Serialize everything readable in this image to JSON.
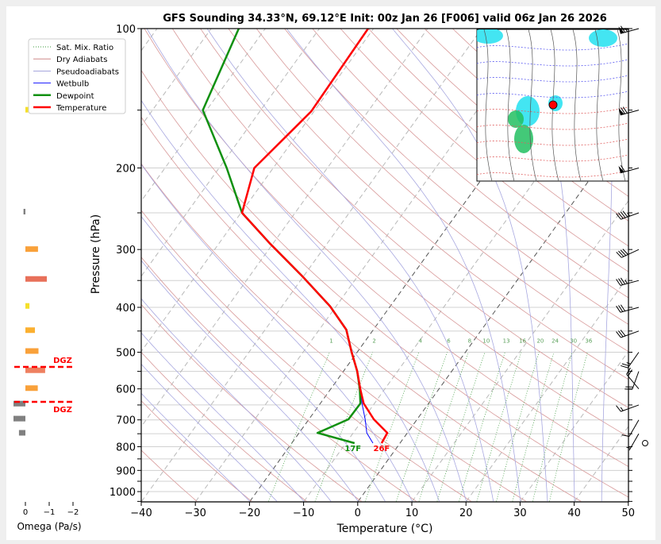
{
  "chart_data": {
    "type": "line",
    "title": "GFS Sounding 34.33°N, 69.12°E Init: 00z Jan 26 [F006] valid 06z Jan 26 2026",
    "xlabel": "Temperature (°C)",
    "ylabel": "Pressure (hPa)",
    "xlim": [
      -40,
      50
    ],
    "ylim": [
      1050,
      100
    ],
    "y_scale": "log",
    "skew": "skew-T",
    "x_ticks": [
      "−40",
      "−30",
      "−20",
      "−10",
      "0",
      "10",
      "20",
      "30",
      "40",
      "50"
    ],
    "x_tick_values": [
      -40,
      -30,
      -20,
      -10,
      0,
      10,
      20,
      30,
      40,
      50
    ],
    "y_ticks": [
      "100",
      "200",
      "300",
      "400",
      "500",
      "600",
      "700",
      "800",
      "900",
      "1000"
    ],
    "y_tick_values": [
      100,
      200,
      300,
      400,
      500,
      600,
      700,
      800,
      900,
      1000
    ],
    "grid": true,
    "legend": {
      "placement": "top-left",
      "entries": [
        {
          "label": "Sat. Mix. Ratio",
          "color": "#3a9a3a",
          "style": "dotted"
        },
        {
          "label": "Dry Adiabats",
          "color": "#c87878",
          "style": "solid"
        },
        {
          "label": "Pseudoadiabats",
          "color": "#9a9ad8",
          "style": "solid"
        },
        {
          "label": "Wetbulb",
          "color": "#0000ff",
          "style": "solid"
        },
        {
          "label": "Dewpoint",
          "color": "#109010",
          "style": "solid"
        },
        {
          "label": "Temperature",
          "color": "#ff0000",
          "style": "solid"
        }
      ]
    },
    "series": [
      {
        "name": "Temperature",
        "color": "#ff0000",
        "p": [
          786,
          747,
          698,
          645,
          601,
          549,
          499,
          447,
          398,
          344,
          292,
          250,
          200,
          151,
          100
        ],
        "t": [
          -3.4,
          -3.7,
          -8.0,
          -12.0,
          -14.5,
          -17.5,
          -21.1,
          -25.0,
          -31.1,
          -40.0,
          -50.4,
          -59.8,
          -63.5,
          -60.5,
          -61.0
        ]
      },
      {
        "name": "Dewpoint",
        "color": "#109010",
        "p": [
          786,
          747,
          698,
          645,
          601,
          549,
          499,
          447,
          398,
          344,
          292,
          250,
          200,
          150,
          100
        ],
        "t": [
          -8.4,
          -16.6,
          -12.7,
          -12.6,
          -14.6,
          -17.5,
          -21.1,
          -25.0,
          -31.1,
          -40.0,
          -50.4,
          -59.8,
          -68.6,
          -80.7,
          -84.9
        ]
      },
      {
        "name": "Wetbulb",
        "color": "#0000ff",
        "p": [
          786,
          747,
          698,
          645,
          601,
          549,
          499,
          447,
          398,
          344,
          292,
          250,
          200,
          151,
          100
        ],
        "t": [
          -5.0,
          -7.5,
          -9.6,
          -12.3,
          -14.5,
          -17.5,
          -21.1,
          -25.0,
          -31.1,
          -40.0,
          -50.4,
          -59.8,
          -63.6,
          -60.6,
          -61.1
        ]
      }
    ],
    "surface_labels": {
      "dewpoint": "17F",
      "temperature": "26F"
    },
    "mixing_ratio_labels": [
      "1",
      "2",
      "4",
      "6",
      "8",
      "10",
      "13",
      "16",
      "20",
      "24",
      "30",
      "36"
    ],
    "mixing_ratio_values": [
      1,
      2,
      4,
      6,
      8,
      10,
      13,
      16,
      20,
      24,
      30,
      36
    ],
    "dgz": {
      "label": "DGZ",
      "p_top": 538,
      "p_bottom": 640,
      "color": "#ff0000"
    },
    "omega": {
      "xlabel": "Omega (Pa/s)",
      "x_ticks": [
        "0",
        "−1",
        "−2"
      ],
      "x_tick_values": [
        0,
        -1,
        -2
      ],
      "bars": [
        {
          "p": 150,
          "value": -0.12,
          "color": "#f5e02a"
        },
        {
          "p": 249,
          "value": 0.08,
          "color": "#808080"
        },
        {
          "p": 300,
          "value": -0.53,
          "color": "#f9a13a"
        },
        {
          "p": 348,
          "value": -0.9,
          "color": "#e8705a"
        },
        {
          "p": 398,
          "value": -0.17,
          "color": "#f5e02a"
        },
        {
          "p": 449,
          "value": -0.4,
          "color": "#fbb030"
        },
        {
          "p": 498,
          "value": -0.55,
          "color": "#f9a13a"
        },
        {
          "p": 548,
          "value": -0.83,
          "color": "#ee8060"
        },
        {
          "p": 599,
          "value": -0.52,
          "color": "#f9a13a"
        },
        {
          "p": 647,
          "value": 0.5,
          "color": "#808080"
        },
        {
          "p": 697,
          "value": 0.5,
          "color": "#808080"
        },
        {
          "p": 748,
          "value": 0.27,
          "color": "#808080"
        }
      ]
    },
    "winds": [
      {
        "p": 100,
        "dir": 255,
        "kt": 65
      },
      {
        "p": 150,
        "dir": 255,
        "kt": 70
      },
      {
        "p": 200,
        "dir": 255,
        "kt": 60
      },
      {
        "p": 250,
        "dir": 250,
        "kt": 45
      },
      {
        "p": 300,
        "dir": 245,
        "kt": 40
      },
      {
        "p": 350,
        "dir": 255,
        "kt": 35
      },
      {
        "p": 400,
        "dir": 255,
        "kt": 30
      },
      {
        "p": 450,
        "dir": 250,
        "kt": 30
      },
      {
        "p": 500,
        "dir": 215,
        "kt": 25
      },
      {
        "p": 550,
        "dir": 200,
        "kt": 20
      },
      {
        "p": 600,
        "dir": 320,
        "kt": 20
      },
      {
        "p": 650,
        "dir": 250,
        "kt": 15
      },
      {
        "p": 700,
        "dir": 210,
        "kt": 10
      },
      {
        "p": 750,
        "dir": 210,
        "kt": 5
      },
      {
        "p": 786,
        "dir": 0,
        "kt": 0
      }
    ],
    "inset_map": {
      "marker_color": "#ff0000"
    }
  }
}
